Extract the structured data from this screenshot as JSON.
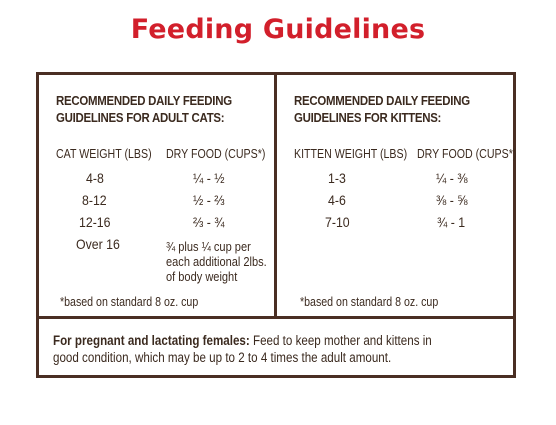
{
  "title": "Feeding Guidelines",
  "adult": {
    "heading_line1": "RECOMMENDED DAILY FEEDING",
    "heading_line2": "GUIDELINES FOR ADULT CATS:",
    "col_weight": "CAT WEIGHT (LBS)",
    "col_food": "DRY FOOD (CUPS*)",
    "rows": [
      {
        "weight": "4-8",
        "food": "¼ - ½"
      },
      {
        "weight": "8-12",
        "food": "½ - ⅔"
      },
      {
        "weight": "12-16",
        "food": "⅔ - ¾"
      },
      {
        "weight": "Over 16",
        "food": "¾ plus ¼ cup per"
      }
    ],
    "extra_line1": "each additional 2lbs.",
    "extra_line2": "of body weight",
    "footnote": "*based on standard 8 oz. cup"
  },
  "kitten": {
    "heading_line1": "RECOMMENDED DAILY FEEDING",
    "heading_line2": "GUIDELINES FOR KITTENS:",
    "col_weight": "KITTEN WEIGHT (LBS)",
    "col_food": "DRY FOOD (CUPS*)",
    "rows": [
      {
        "weight": "1-3",
        "food": "¼ - ⅜"
      },
      {
        "weight": "4-6",
        "food": "⅜ - ⅝"
      },
      {
        "weight": "7-10",
        "food": "¾ - 1"
      }
    ],
    "footnote": "*based on standard 8 oz. cup"
  },
  "pregnant": {
    "label": "For pregnant and lactating females:",
    "text_line1": " Feed to keep mother and kittens in",
    "text_line2": "good condition, which may be up to 2 to 4 times the adult amount."
  }
}
